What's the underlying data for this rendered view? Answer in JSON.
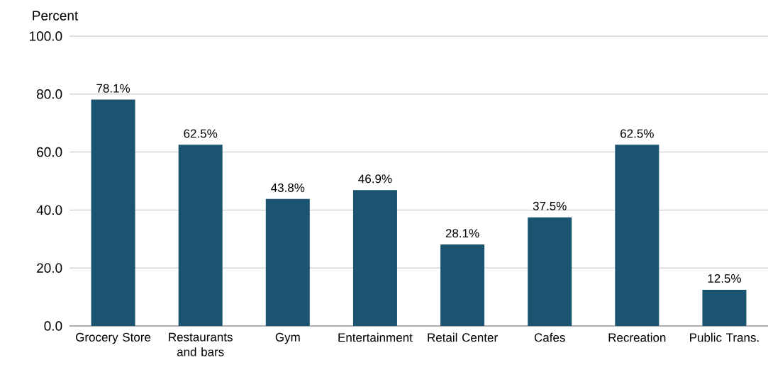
{
  "chart_data": {
    "type": "bar",
    "ylabel": "Percent",
    "categories": [
      "Grocery Store",
      "Restaurants and bars",
      "Gym",
      "Entertainment",
      "Retail Center",
      "Cafes",
      "Recreation",
      "Public Trans."
    ],
    "values": [
      78.1,
      62.5,
      43.8,
      46.9,
      28.1,
      37.5,
      62.5,
      12.5
    ],
    "value_labels": [
      "78.1%",
      "62.5%",
      "43.8%",
      "46.9%",
      "28.1%",
      "37.5%",
      "62.5%",
      "12.5%"
    ],
    "color": "#1b5470",
    "ylim": [
      0,
      100
    ],
    "yticks": [
      {
        "value": 0,
        "label": "0.0"
      },
      {
        "value": 20,
        "label": "20.0"
      },
      {
        "value": 40,
        "label": "40.0"
      },
      {
        "value": 60,
        "label": "60.0"
      },
      {
        "value": 80,
        "label": "80.0"
      },
      {
        "value": 100,
        "label": "100.0"
      }
    ],
    "grid": "y"
  }
}
